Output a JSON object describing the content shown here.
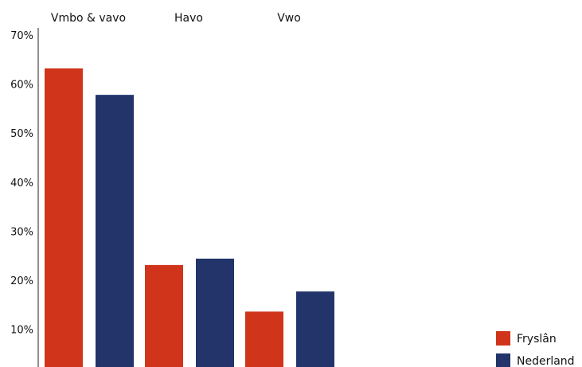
{
  "chart_data": {
    "type": "bar",
    "categories": [
      "Vmbo & vavo",
      "Havo",
      "Vwo"
    ],
    "series": [
      {
        "name": "Fryslân",
        "values": [
          63.2,
          23.1,
          13.6
        ],
        "color": "#d0351b"
      },
      {
        "name": "Nederland",
        "values": [
          57.8,
          24.4,
          17.7
        ],
        "color": "#22346a"
      }
    ],
    "yticks": [
      "10%",
      "20%",
      "30%",
      "40%",
      "50%",
      "60%",
      "70%"
    ],
    "ytick_values": [
      10,
      20,
      30,
      40,
      50,
      60,
      70
    ],
    "ylim": [
      2.3,
      70
    ],
    "category_axis_position": "top",
    "legend_position": "bottom-right",
    "grid": false
  }
}
